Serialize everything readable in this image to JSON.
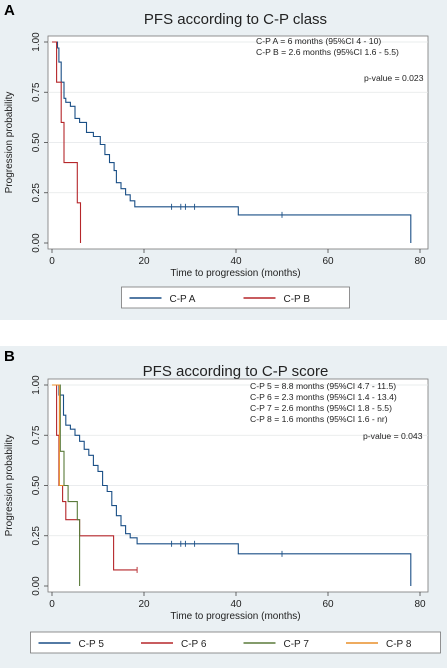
{
  "chart_data": [
    {
      "type": "line",
      "panel_label": "A",
      "title": "PFS according to C-P class",
      "xlabel": "Time to progression (months)",
      "ylabel": "Progression probability",
      "xlim": [
        0,
        80
      ],
      "ylim": [
        0,
        1
      ],
      "xticks": [
        "0",
        "20",
        "40",
        "60",
        "80"
      ],
      "yticks": [
        "0.00",
        "0.25",
        "0.50",
        "0.75",
        "1.00"
      ],
      "grid": true,
      "legend_position": "bottom",
      "annotations": [
        "C-P A = 6 months (95%CI 4 - 10)",
        "C-P B = 2.6 months (95%CI 1.6 - 5.5)",
        "p-value = 0.023"
      ],
      "series": [
        {
          "name": "C-P A",
          "color": "#1a4f86",
          "points": [
            [
              0,
              1.0
            ],
            [
              1.2,
              1.0
            ],
            [
              1.2,
              0.97
            ],
            [
              1.5,
              0.97
            ],
            [
              1.5,
              0.9
            ],
            [
              2.0,
              0.9
            ],
            [
              2.0,
              0.8
            ],
            [
              2.6,
              0.8
            ],
            [
              2.6,
              0.72
            ],
            [
              3.0,
              0.72
            ],
            [
              3.0,
              0.7
            ],
            [
              4.0,
              0.7
            ],
            [
              4.0,
              0.68
            ],
            [
              5.0,
              0.68
            ],
            [
              5.0,
              0.62
            ],
            [
              6.0,
              0.62
            ],
            [
              6.0,
              0.6
            ],
            [
              7.5,
              0.6
            ],
            [
              7.5,
              0.55
            ],
            [
              9.0,
              0.55
            ],
            [
              9.0,
              0.53
            ],
            [
              10.5,
              0.53
            ],
            [
              10.5,
              0.49
            ],
            [
              11.5,
              0.49
            ],
            [
              11.5,
              0.44
            ],
            [
              12.5,
              0.44
            ],
            [
              12.5,
              0.4
            ],
            [
              13.5,
              0.4
            ],
            [
              13.5,
              0.36
            ],
            [
              14.0,
              0.36
            ],
            [
              14.0,
              0.3
            ],
            [
              15.0,
              0.3
            ],
            [
              15.0,
              0.27
            ],
            [
              16.0,
              0.27
            ],
            [
              16.0,
              0.24
            ],
            [
              17.0,
              0.24
            ],
            [
              17.0,
              0.21
            ],
            [
              18.0,
              0.21
            ],
            [
              18.0,
              0.18
            ],
            [
              40.5,
              0.18
            ],
            [
              40.5,
              0.14
            ],
            [
              78.0,
              0.14
            ],
            [
              78.0,
              0.0
            ]
          ],
          "censored": [
            [
              26,
              0.18
            ],
            [
              28,
              0.18
            ],
            [
              29,
              0.18
            ],
            [
              31,
              0.18
            ],
            [
              50,
              0.14
            ]
          ]
        },
        {
          "name": "C-P B",
          "color": "#b5262a",
          "points": [
            [
              0,
              1.0
            ],
            [
              1.0,
              1.0
            ],
            [
              1.0,
              0.8
            ],
            [
              2.0,
              0.8
            ],
            [
              2.0,
              0.6
            ],
            [
              2.6,
              0.6
            ],
            [
              2.6,
              0.4
            ],
            [
              5.5,
              0.4
            ],
            [
              5.5,
              0.2
            ],
            [
              6.2,
              0.2
            ],
            [
              6.2,
              0.0
            ]
          ],
          "censored": []
        }
      ]
    },
    {
      "type": "line",
      "panel_label": "B",
      "title": "PFS according to C-P score",
      "xlabel": "Time to progression (months)",
      "ylabel": "Progression probability",
      "xlim": [
        0,
        80
      ],
      "ylim": [
        0,
        1
      ],
      "xticks": [
        "0",
        "20",
        "40",
        "60",
        "80"
      ],
      "yticks": [
        "0.00",
        "0.25",
        "0.50",
        "0.75",
        "1.00"
      ],
      "grid": true,
      "legend_position": "bottom",
      "annotations": [
        "C-P 5 = 8.8 months (95%CI 4.7 - 11.5)",
        "C-P 6 = 2.3 months (95%CI 1.4 - 13.4)",
        "C-P 7 = 2.6 months (95%CI 1.8 - 5.5)",
        "C-P 8 = 1.6 months (95%CI 1.6 - nr)",
        "p-value = 0.043"
      ],
      "series": [
        {
          "name": "C-P 5",
          "color": "#1a4f86",
          "points": [
            [
              0,
              1.0
            ],
            [
              1.5,
              1.0
            ],
            [
              1.5,
              0.95
            ],
            [
              2.5,
              0.95
            ],
            [
              2.5,
              0.85
            ],
            [
              3.0,
              0.85
            ],
            [
              3.0,
              0.8
            ],
            [
              4.0,
              0.8
            ],
            [
              4.0,
              0.78
            ],
            [
              5.0,
              0.78
            ],
            [
              5.0,
              0.75
            ],
            [
              6.0,
              0.75
            ],
            [
              6.0,
              0.72
            ],
            [
              7.0,
              0.72
            ],
            [
              7.0,
              0.68
            ],
            [
              8.0,
              0.68
            ],
            [
              8.0,
              0.65
            ],
            [
              9.0,
              0.65
            ],
            [
              9.0,
              0.6
            ],
            [
              10.0,
              0.6
            ],
            [
              10.0,
              0.57
            ],
            [
              11.0,
              0.57
            ],
            [
              11.0,
              0.5
            ],
            [
              12.0,
              0.5
            ],
            [
              12.0,
              0.47
            ],
            [
              13.0,
              0.47
            ],
            [
              13.0,
              0.4
            ],
            [
              14.0,
              0.4
            ],
            [
              14.0,
              0.35
            ],
            [
              15.0,
              0.35
            ],
            [
              15.0,
              0.3
            ],
            [
              16.0,
              0.3
            ],
            [
              16.0,
              0.26
            ],
            [
              17.0,
              0.26
            ],
            [
              17.0,
              0.24
            ],
            [
              18.5,
              0.24
            ],
            [
              18.5,
              0.21
            ],
            [
              40.5,
              0.21
            ],
            [
              40.5,
              0.16
            ],
            [
              78.0,
              0.16
            ],
            [
              78.0,
              0.0
            ]
          ],
          "censored": [
            [
              26,
              0.21
            ],
            [
              28,
              0.21
            ],
            [
              29,
              0.21
            ],
            [
              31,
              0.21
            ],
            [
              50,
              0.16
            ]
          ]
        },
        {
          "name": "C-P 6",
          "color": "#b5262a",
          "points": [
            [
              0,
              1.0
            ],
            [
              1.0,
              1.0
            ],
            [
              1.0,
              0.75
            ],
            [
              1.5,
              0.75
            ],
            [
              1.5,
              0.5
            ],
            [
              2.3,
              0.5
            ],
            [
              2.3,
              0.42
            ],
            [
              3.0,
              0.42
            ],
            [
              3.0,
              0.33
            ],
            [
              6.0,
              0.33
            ],
            [
              6.0,
              0.25
            ],
            [
              13.4,
              0.25
            ],
            [
              13.4,
              0.08
            ],
            [
              18.5,
              0.08
            ]
          ],
          "censored": [
            [
              18.5,
              0.08
            ]
          ]
        },
        {
          "name": "C-P 7",
          "color": "#5a7a3a",
          "points": [
            [
              0,
              1.0
            ],
            [
              1.8,
              1.0
            ],
            [
              1.8,
              0.67
            ],
            [
              2.6,
              0.67
            ],
            [
              2.6,
              0.5
            ],
            [
              3.5,
              0.5
            ],
            [
              3.5,
              0.42
            ],
            [
              5.5,
              0.42
            ],
            [
              5.5,
              0.33
            ],
            [
              6.0,
              0.33
            ],
            [
              6.0,
              0.0
            ]
          ],
          "censored": []
        },
        {
          "name": "C-P 8",
          "color": "#e88f2a",
          "points": [
            [
              0,
              1.0
            ],
            [
              1.6,
              1.0
            ],
            [
              1.6,
              0.5
            ],
            [
              2.5,
              0.5
            ]
          ],
          "censored": []
        }
      ]
    }
  ]
}
